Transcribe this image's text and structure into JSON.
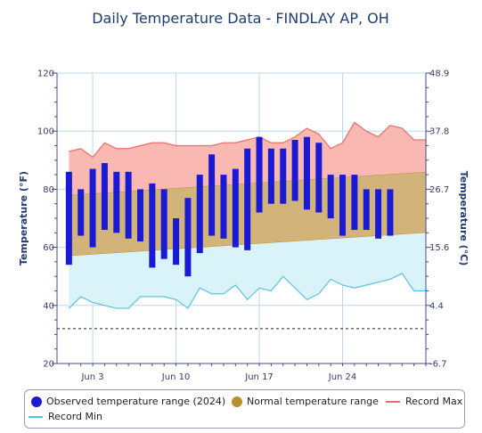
{
  "chart_data": {
    "type": "range-area",
    "title": "Daily Temperature Data - FINDLAY AP, OH",
    "ylabel_left": "Temperature (°F)",
    "ylabel_right": "Temperature (°C)",
    "ylim_f": [
      20,
      120
    ],
    "yticks_left": [
      "20",
      "40",
      "60",
      "80",
      "100",
      "120"
    ],
    "yticks_right": [
      "-6.7",
      "4.4",
      "15.6",
      "26.7",
      "37.8",
      "48.9"
    ],
    "x_tick_labels": [
      {
        "day": 3,
        "label": "Jun 3"
      },
      {
        "day": 10,
        "label": "Jun 10"
      },
      {
        "day": 17,
        "label": "Jun 17"
      },
      {
        "day": 24,
        "label": "Jun 24"
      }
    ],
    "x_range_days": [
      0,
      31
    ],
    "dashed_line_f": 32,
    "colors": {
      "observed": "#1a1ad4",
      "normal_fill": "#d2b47a",
      "normal_edge": "#b8902e",
      "record_max_fill": "#f9b8b2",
      "record_max_line": "#e8706a",
      "record_min_fill": "#d9f3f8",
      "record_min_line": "#58c4e0",
      "grid": "#bcd8ec",
      "axis": "#4a4a8a"
    },
    "observed_range": {
      "name": "Observed temperature range (2024)",
      "days": [
        1,
        2,
        3,
        4,
        5,
        6,
        7,
        8,
        9,
        10,
        11,
        12,
        13,
        14,
        15,
        16,
        17,
        18,
        19,
        20,
        21,
        22,
        23,
        24,
        25,
        26,
        27,
        28
      ],
      "low": [
        54,
        64,
        60,
        66,
        65,
        63,
        62,
        53,
        56,
        54,
        50,
        58,
        64,
        63,
        60,
        59,
        72,
        75,
        75,
        76,
        73,
        72,
        70,
        64,
        66,
        66,
        63,
        64
      ],
      "high": [
        86,
        80,
        87,
        89,
        86,
        86,
        80,
        82,
        80,
        70,
        77,
        85,
        92,
        85,
        87,
        94,
        98,
        94,
        94,
        97,
        98,
        96,
        85,
        85,
        85,
        80,
        80,
        80
      ]
    },
    "normal_range": {
      "name": "Normal temperature range",
      "days": [
        1,
        31
      ],
      "low": [
        57,
        65
      ],
      "high": [
        78,
        86
      ]
    },
    "record_max": {
      "name": "Record Max",
      "days": [
        1,
        2,
        3,
        4,
        5,
        6,
        7,
        8,
        9,
        10,
        11,
        12,
        13,
        14,
        15,
        16,
        17,
        18,
        19,
        20,
        21,
        22,
        23,
        24,
        25,
        26,
        27,
        28,
        29,
        30,
        31
      ],
      "values": [
        93,
        94,
        91,
        96,
        94,
        94,
        95,
        96,
        96,
        95,
        95,
        95,
        95,
        96,
        96,
        97,
        98,
        96,
        96,
        98,
        101,
        99,
        94,
        96,
        103,
        100,
        98,
        102,
        101,
        97,
        97
      ]
    },
    "record_min": {
      "name": "Record Min",
      "days": [
        1,
        2,
        3,
        4,
        5,
        6,
        7,
        8,
        9,
        10,
        11,
        12,
        13,
        14,
        15,
        16,
        17,
        18,
        19,
        20,
        21,
        22,
        23,
        24,
        25,
        26,
        27,
        28,
        29,
        30,
        31
      ],
      "values": [
        39,
        43,
        41,
        40,
        39,
        39,
        43,
        43,
        43,
        42,
        39,
        46,
        44,
        44,
        47,
        42,
        46,
        45,
        50,
        46,
        42,
        44,
        49,
        47,
        46,
        47,
        48,
        49,
        51,
        45,
        45
      ]
    }
  },
  "legend": [
    {
      "key": "observed",
      "label": "Observed temperature range (2024)",
      "kind": "dot",
      "color": "#1a1ad4"
    },
    {
      "key": "normal",
      "label": "Normal temperature range",
      "kind": "dot",
      "color": "#b8902e"
    },
    {
      "key": "record_max",
      "label": "Record Max",
      "kind": "line",
      "color": "#e8706a"
    },
    {
      "key": "record_min",
      "label": "Record Min",
      "kind": "line",
      "color": "#58c4e0"
    }
  ]
}
